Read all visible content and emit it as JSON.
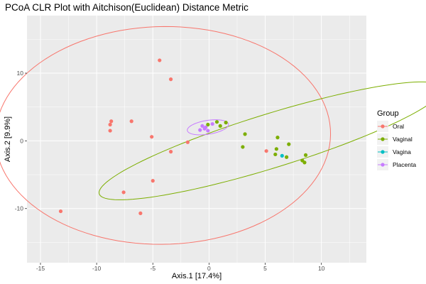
{
  "chart_data": {
    "type": "scatter",
    "title": "PCoA CLR Plot with Aitchison(Euclidean) Distance Metric",
    "xlabel": "Axis.1   [17.4%]",
    "ylabel": "Axis.2   [9.9%]",
    "xlim": [
      -16.2,
      14.0
    ],
    "ylim": [
      -18.0,
      18.5
    ],
    "x_ticks": [
      -15,
      -10,
      -5,
      0,
      5,
      10
    ],
    "y_ticks": [
      -10,
      0,
      10
    ],
    "grid": true,
    "legend_position": "right",
    "legend_title": "Group",
    "series": [
      {
        "name": "Oral",
        "color": "#F8766D",
        "points": [
          [
            -4.4,
            11.9
          ],
          [
            -3.4,
            9.1
          ],
          [
            -8.7,
            2.9
          ],
          [
            -8.8,
            2.4
          ],
          [
            -6.9,
            2.9
          ],
          [
            -8.8,
            1.5
          ],
          [
            -5.1,
            0.6
          ],
          [
            -1.9,
            -0.2
          ],
          [
            -3.4,
            -1.6
          ],
          [
            -5.0,
            -5.9
          ],
          [
            -7.6,
            -7.6
          ],
          [
            -6.1,
            -10.7
          ],
          [
            -13.2,
            -10.4
          ],
          [
            5.1,
            -1.5
          ]
        ],
        "ellipse": {
          "center": [
            -4.1,
            0.8
          ],
          "semi_axes": [
            14.9,
            16.1
          ],
          "angle_deg": -6
        }
      },
      {
        "name": "Vaginal",
        "color": "#7CAE00",
        "points": [
          [
            0.7,
            2.8
          ],
          [
            1.5,
            2.7
          ],
          [
            -0.1,
            2.4
          ],
          [
            1.0,
            2.2
          ],
          [
            3.2,
            1.0
          ],
          [
            6.1,
            0.5
          ],
          [
            7.1,
            -0.5
          ],
          [
            3.0,
            -0.9
          ],
          [
            6.0,
            -1.2
          ],
          [
            5.9,
            -2.0
          ],
          [
            8.6,
            -2.1
          ],
          [
            6.9,
            -2.4
          ],
          [
            8.3,
            -2.9
          ],
          [
            8.5,
            -3.2
          ]
        ],
        "ellipse": {
          "center": [
            5.5,
            0.0
          ],
          "semi_axes": [
            17.2,
            3.7
          ],
          "angle_deg": 28
        }
      },
      {
        "name": "Vagina",
        "color": "#00BFC4",
        "points": [
          [
            6.5,
            -2.2
          ]
        ]
      },
      {
        "name": "Placenta",
        "color": "#C77CFF",
        "points": [
          [
            -0.6,
            2.2
          ],
          [
            0.3,
            2.5
          ],
          [
            -0.3,
            2.0
          ],
          [
            -0.8,
            1.6
          ],
          [
            -0.1,
            1.5
          ],
          [
            -0.4,
            1.8
          ]
        ],
        "ellipse": {
          "center": [
            -0.1,
            2.0
          ],
          "semi_axes": [
            1.9,
            1.0
          ],
          "angle_deg": 18
        }
      }
    ]
  }
}
